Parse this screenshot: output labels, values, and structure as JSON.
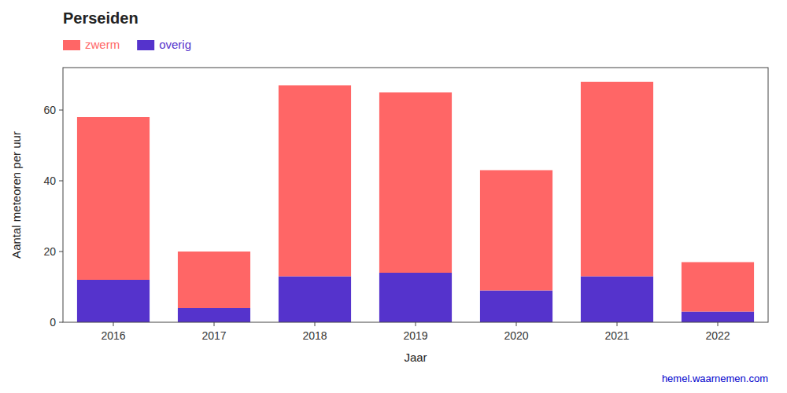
{
  "chart_data": {
    "type": "bar",
    "stacked": true,
    "title": "Perseiden",
    "x_label": "Jaar",
    "y_label": "Aantal meteoren per uur",
    "categories": [
      "2016",
      "2017",
      "2018",
      "2019",
      "2020",
      "2021",
      "2022"
    ],
    "series": [
      {
        "name": "overig",
        "color": "#5533CC",
        "values": [
          12,
          4,
          13,
          14,
          9,
          13,
          3
        ]
      },
      {
        "name": "zwerm",
        "color": "#FF6666",
        "values": [
          46,
          16,
          54,
          51,
          34,
          55,
          14
        ]
      }
    ],
    "ylim": [
      0,
      72
    ],
    "yticks": [
      0,
      20,
      40,
      60
    ],
    "grid": false,
    "legend": "upper left",
    "annotations": [
      {
        "text": "hemel.waarnemen.com",
        "color": "#0000CC"
      }
    ]
  }
}
